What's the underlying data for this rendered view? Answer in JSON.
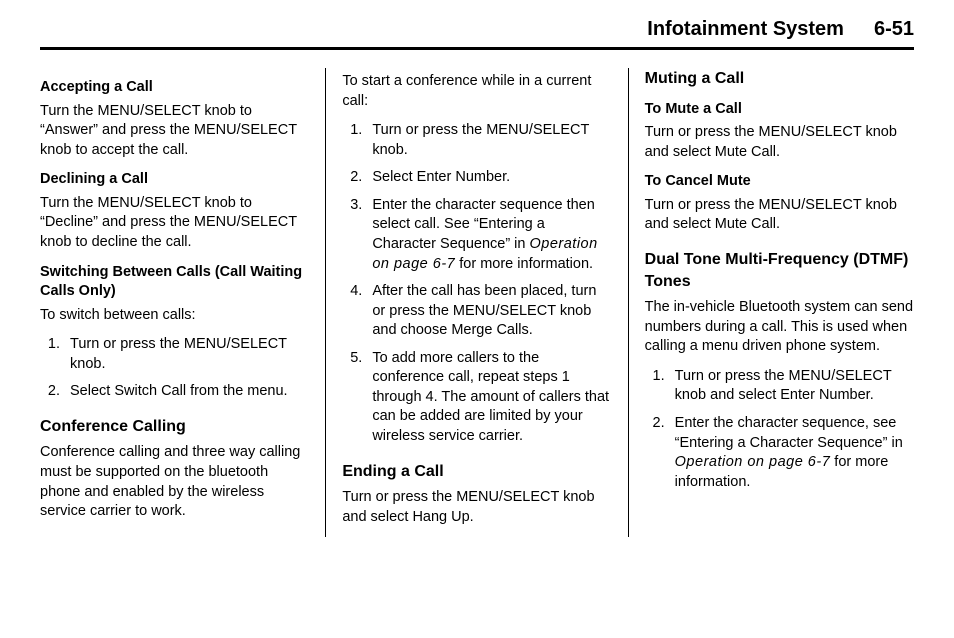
{
  "header": {
    "title": "Infotainment System",
    "page": "6-51"
  },
  "col1": {
    "accepting_h": "Accepting a Call",
    "accepting_p": "Turn the MENU/SELECT knob to “Answer” and press the MENU/SELECT knob to accept the call.",
    "declining_h": "Declining a Call",
    "declining_p": "Turn the MENU/SELECT knob to “Decline” and press the MENU/SELECT knob to decline the call.",
    "switching_h": "Switching Between Calls (Call Waiting Calls Only)",
    "switching_intro": "To switch between calls:",
    "switching_steps": [
      "Turn or press the MENU/SELECT knob.",
      "Select Switch Call from the menu."
    ],
    "conference_h": "Conference Calling",
    "conference_p": "Conference calling and three way calling must be supported on the bluetooth phone and enabled by the wireless service carrier to work."
  },
  "col2": {
    "intro": "To start a conference while in a current call:",
    "steps": {
      "s1": "Turn or press the MENU/SELECT knob.",
      "s2": "Select Enter Number.",
      "s3a": "Enter the character sequence then select call. See “Entering a Character Sequence” in ",
      "s3_italic": "Operation on page 6-7",
      "s3b": " for more information.",
      "s4": "After the call has been placed, turn or press the MENU/SELECT knob and choose Merge Calls.",
      "s5": "To add more callers to the conference call, repeat steps 1 through 4. The amount of callers that can be added are limited by your wireless service carrier."
    },
    "ending_h": "Ending a Call",
    "ending_p": "Turn or press the MENU/SELECT knob and select Hang Up."
  },
  "col3": {
    "muting_h": "Muting a Call",
    "mute_sub": "To Mute a Call",
    "mute_p": "Turn or press the MENU/SELECT knob and select Mute Call.",
    "cancel_sub": "To Cancel Mute",
    "cancel_p": "Turn or press the MENU/SELECT knob and select Mute Call.",
    "dtmf_h": "Dual Tone Multi-Frequency (DTMF) Tones",
    "dtmf_p": "The in-vehicle Bluetooth system can send numbers during a call. This is used when calling a menu driven phone system.",
    "dtmf_steps": {
      "s1": "Turn or press the MENU/SELECT knob and select Enter Number.",
      "s2a": "Enter the character sequence, see “Entering a Character Sequence” in ",
      "s2_italic": "Operation on page 6-7",
      "s2b": " for more information."
    }
  }
}
